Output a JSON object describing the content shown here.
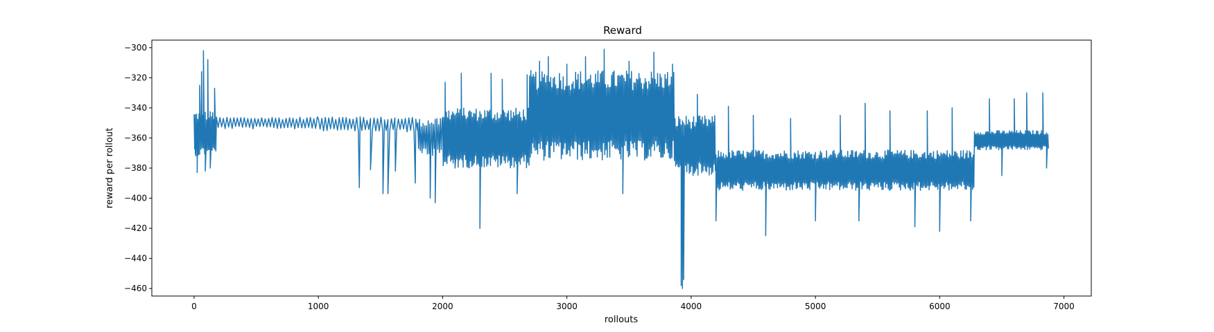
{
  "chart_data": {
    "type": "line",
    "title": "Reward",
    "xlabel": "rollouts",
    "ylabel": "reward per rollout",
    "xlim": [
      -340,
      7220
    ],
    "ylim": [
      -465,
      -295
    ],
    "xticks": [
      0,
      1000,
      2000,
      3000,
      4000,
      5000,
      6000,
      7000
    ],
    "yticks": [
      -300,
      -320,
      -340,
      -360,
      -380,
      -400,
      -420,
      -440,
      -460
    ],
    "grid": false,
    "legend": "none",
    "series": [
      {
        "color": "#1f77b4",
        "segments": [
          {
            "x0": 0,
            "x1": 180,
            "lo": -372,
            "hi": -342,
            "period": 10
          },
          {
            "x0": 180,
            "x1": 1000,
            "lo": -354,
            "hi": -346,
            "period": 28
          },
          {
            "x0": 1000,
            "x1": 1800,
            "lo": -356,
            "hi": -346,
            "period": 28
          },
          {
            "x0": 1800,
            "x1": 2000,
            "lo": -372,
            "hi": -347,
            "period": 14
          },
          {
            "x0": 2000,
            "x1": 2700,
            "lo": -380,
            "hi": -340,
            "period": 10
          },
          {
            "x0": 2700,
            "x1": 3870,
            "lo": -375,
            "hi": -315,
            "period": 10
          },
          {
            "x0": 3870,
            "x1": 4200,
            "lo": -385,
            "hi": -345,
            "period": 10
          },
          {
            "x0": 4200,
            "x1": 6280,
            "lo": -395,
            "hi": -368,
            "period": 10
          },
          {
            "x0": 6280,
            "x1": 6880,
            "lo": -368,
            "hi": -355,
            "period": 10
          }
        ],
        "spikes": [
          [
            10,
            -370
          ],
          [
            25,
            -383
          ],
          [
            45,
            -325
          ],
          [
            60,
            -316
          ],
          [
            75,
            -302
          ],
          [
            90,
            -382
          ],
          [
            110,
            -308
          ],
          [
            130,
            -380
          ],
          [
            165,
            -327
          ],
          [
            1330,
            -393
          ],
          [
            1420,
            -381
          ],
          [
            1520,
            -397
          ],
          [
            1560,
            -397
          ],
          [
            1620,
            -382
          ],
          [
            1780,
            -390
          ],
          [
            1900,
            -400
          ],
          [
            1940,
            -403
          ],
          [
            2020,
            -323
          ],
          [
            2100,
            -380
          ],
          [
            2150,
            -317
          ],
          [
            2300,
            -420
          ],
          [
            2390,
            -317
          ],
          [
            2480,
            -321
          ],
          [
            2600,
            -397
          ],
          [
            2680,
            -318
          ],
          [
            2780,
            -309
          ],
          [
            2850,
            -306
          ],
          [
            3000,
            -311
          ],
          [
            3150,
            -306
          ],
          [
            3300,
            -301
          ],
          [
            3450,
            -397
          ],
          [
            3500,
            -309
          ],
          [
            3700,
            -303
          ],
          [
            3850,
            -311
          ],
          [
            3920,
            -458
          ],
          [
            3930,
            -460
          ],
          [
            3940,
            -454
          ],
          [
            4050,
            -331
          ],
          [
            4200,
            -415
          ],
          [
            4300,
            -339
          ],
          [
            4500,
            -345
          ],
          [
            4600,
            -425
          ],
          [
            4800,
            -347
          ],
          [
            5000,
            -415
          ],
          [
            5200,
            -345
          ],
          [
            5350,
            -415
          ],
          [
            5400,
            -337
          ],
          [
            5600,
            -342
          ],
          [
            5800,
            -419
          ],
          [
            5900,
            -342
          ],
          [
            6000,
            -422
          ],
          [
            6100,
            -340
          ],
          [
            6250,
            -415
          ],
          [
            6400,
            -334
          ],
          [
            6500,
            -385
          ],
          [
            6600,
            -334
          ],
          [
            6700,
            -330
          ],
          [
            6830,
            -330
          ],
          [
            6860,
            -380
          ]
        ]
      }
    ]
  }
}
